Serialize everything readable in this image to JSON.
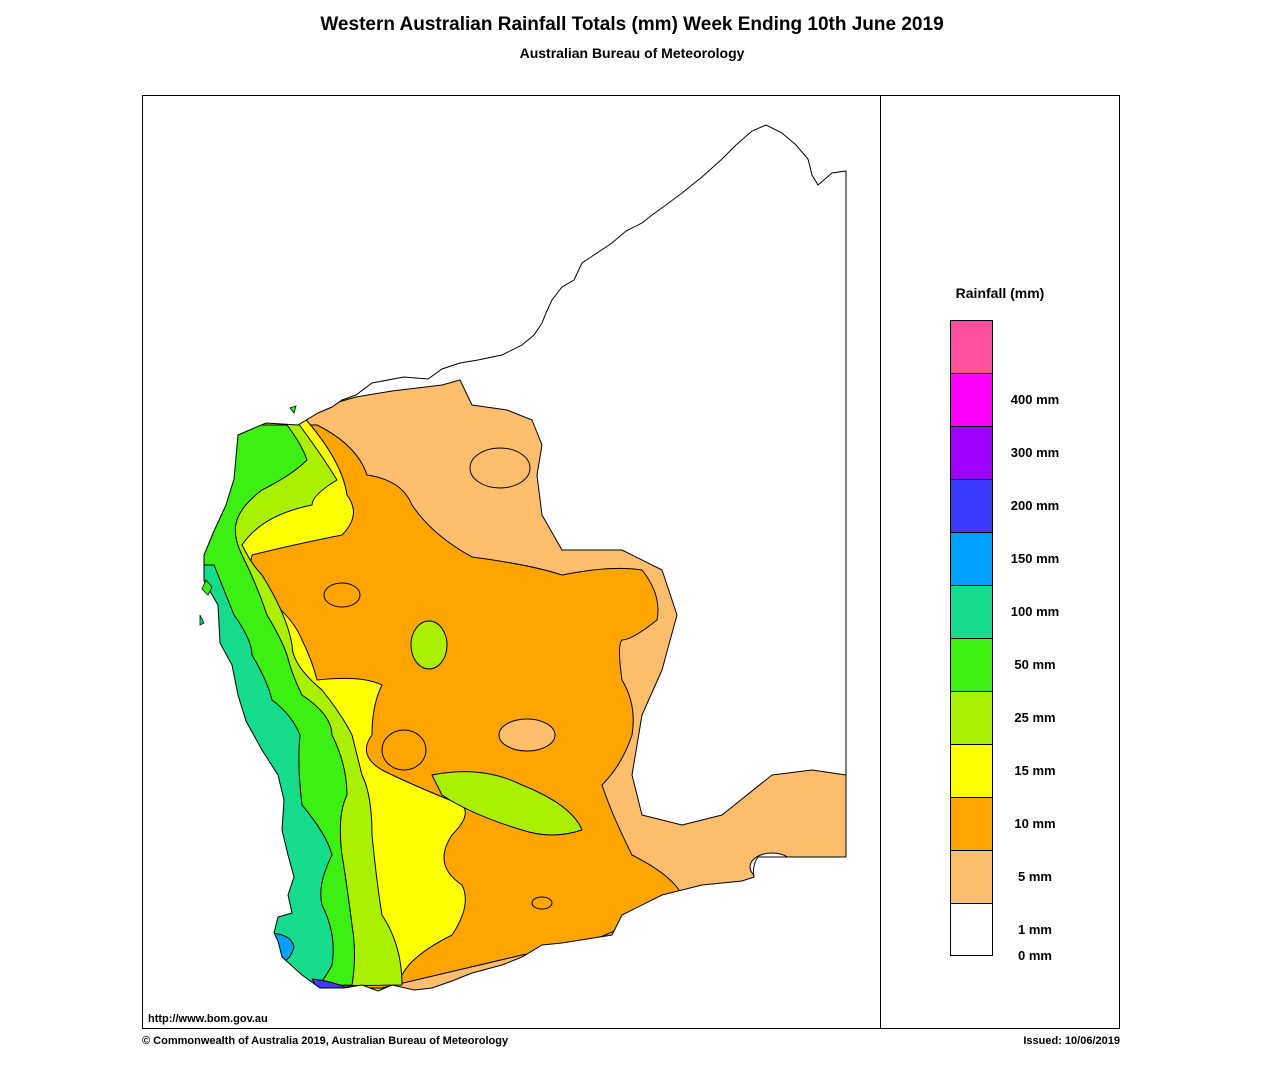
{
  "title": "Western Australian Rainfall Totals (mm)  Week Ending 10th June 2019",
  "subtitle": "Australian Bureau of Meteorology",
  "legend": {
    "title": "Rainfall (mm)",
    "bins": [
      {
        "color": "#ff50a0"
      },
      {
        "color": "#ff00ff",
        "label": "400 mm"
      },
      {
        "color": "#a000ff",
        "label": "300 mm"
      },
      {
        "color": "#3c3cff",
        "label": "200 mm"
      },
      {
        "color": "#00a0ff",
        "label": "150 mm"
      },
      {
        "color": "#14dc8c",
        "label": "100 mm"
      },
      {
        "color": "#3cf014",
        "label": "50 mm"
      },
      {
        "color": "#aaf000",
        "label": "25 mm"
      },
      {
        "color": "#ffff00",
        "label": "15 mm"
      },
      {
        "color": "#ffa500",
        "label": "10 mm"
      },
      {
        "color": "#ffbe6e",
        "label": "5 mm"
      },
      {
        "color": "#ffffff",
        "label": "1 mm"
      }
    ],
    "bottom_label": "0 mm"
  },
  "footer": {
    "url": "http://www.bom.gov.au",
    "copyright": "© Commonwealth of Australia 2019, Australian Bureau of Meteorology",
    "issued": "Issued: 10/06/2019"
  }
}
